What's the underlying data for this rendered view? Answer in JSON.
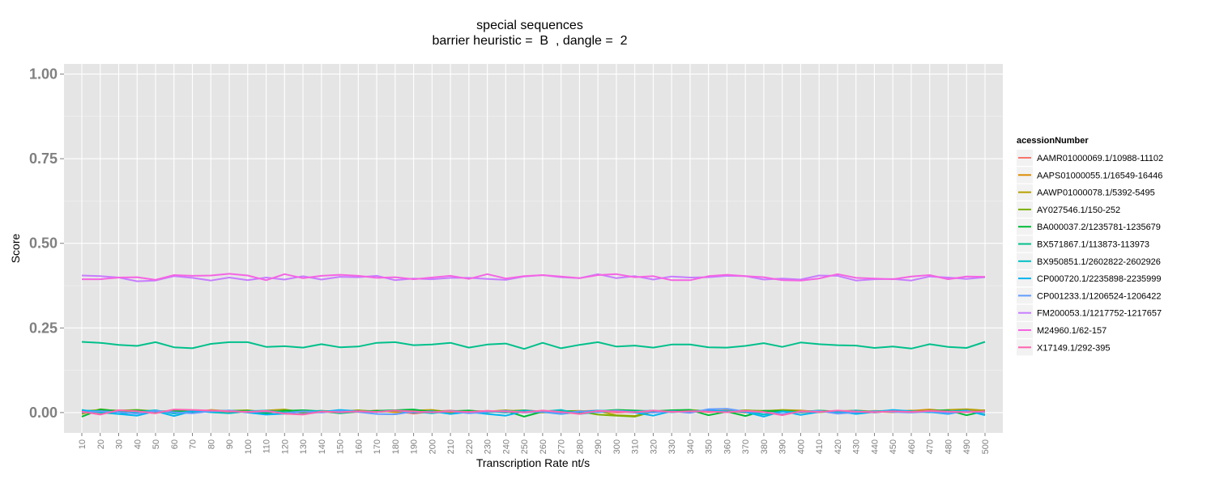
{
  "chart_data": {
    "type": "line",
    "title": "special sequences",
    "subtitle": "barrier heuristic =  B  , dangle =  2",
    "xlabel": "Transcription Rate nt/s",
    "ylabel": "Score",
    "x": [
      10,
      20,
      30,
      40,
      50,
      60,
      70,
      80,
      90,
      100,
      110,
      120,
      130,
      140,
      150,
      160,
      170,
      180,
      190,
      200,
      210,
      220,
      230,
      240,
      250,
      260,
      270,
      280,
      290,
      300,
      310,
      320,
      330,
      340,
      350,
      360,
      370,
      380,
      390,
      400,
      410,
      420,
      430,
      440,
      450,
      460,
      470,
      480,
      490,
      500
    ],
    "ylim": [
      -0.06,
      1.03
    ],
    "yticks": [
      0.0,
      0.25,
      0.5,
      0.75,
      1.0
    ],
    "ytick_labels": [
      "0.00",
      "0.25",
      "0.50",
      "0.75",
      "1.00"
    ],
    "grid": true,
    "legend_title": "acessionNumber",
    "legend_position": "right",
    "series": [
      {
        "name": "AAMR01000069.1/10988-11102",
        "color": "#F8766D",
        "values": [
          0.005,
          -0.005,
          0.007,
          0.003,
          -0.002,
          0.008,
          0.004,
          0.006,
          0.002,
          0.005,
          -0.001,
          0.006,
          0.003,
          0.004,
          0.0,
          0.002,
          0.006,
          0.004,
          -0.003,
          0.003,
          0.006,
          0.002,
          0.005,
          0.001,
          0.007,
          0.003,
          -0.002,
          0.004,
          0.006,
          0.0,
          0.003,
          0.005,
          0.002,
          0.006,
          0.001,
          0.004,
          0.0,
          0.005,
          0.003,
          0.006,
          0.002,
          0.004,
          0.0,
          0.003,
          0.005,
          0.001,
          0.006,
          0.003,
          0.004,
          0.002
        ]
      },
      {
        "name": "AAPS01000055.1/16549-16446",
        "color": "#DE8C00",
        "values": [
          0.002,
          0.006,
          0.003,
          0.005,
          0.0,
          0.004,
          0.007,
          0.002,
          0.005,
          0.001,
          0.004,
          0.006,
          0.0,
          0.003,
          0.005,
          0.002,
          0.006,
          0.001,
          0.004,
          0.003,
          0.0,
          0.005,
          0.002,
          0.006,
          0.003,
          0.0,
          0.004,
          0.005,
          0.002,
          0.006,
          0.003,
          0.001,
          0.005,
          0.002,
          0.004,
          0.006,
          0.001,
          0.003,
          0.005,
          0.0,
          0.004,
          0.002,
          0.006,
          0.003,
          0.001,
          0.005,
          0.009,
          0.004,
          0.006,
          0.007
        ]
      },
      {
        "name": "AAWP01000078.1/5392-5495",
        "color": "#B79F00",
        "values": [
          -0.004,
          0.01,
          0.004,
          0.006,
          0.002,
          0.005,
          0.0,
          0.008,
          0.004,
          0.002,
          0.006,
          0.009,
          0.001,
          0.005,
          0.003,
          0.007,
          0.002,
          0.004,
          0.006,
          0.008,
          0.001,
          0.005,
          0.003,
          0.007,
          0.002,
          0.004,
          0.006,
          0.0,
          0.005,
          -0.008,
          -0.01,
          0.004,
          0.006,
          0.002,
          0.005,
          0.003,
          0.007,
          0.004,
          0.008,
          0.006,
          0.002,
          0.004,
          0.001,
          0.005,
          0.003,
          0.006,
          0.004,
          0.008,
          0.01,
          0.006
        ]
      },
      {
        "name": "AY027546.1/150-252",
        "color": "#7CAE00",
        "values": [
          0.004,
          0.008,
          0.006,
          0.008,
          0.004,
          0.003,
          0.006,
          0.002,
          0.005,
          0.007,
          0.001,
          0.008,
          0.003,
          0.005,
          0.002,
          0.006,
          0.004,
          0.007,
          0.002,
          0.005,
          0.003,
          0.006,
          0.001,
          0.004,
          0.007,
          0.002,
          0.005,
          0.003,
          -0.006,
          -0.009,
          -0.012,
          0.003,
          0.006,
          0.008,
          0.004,
          0.002,
          0.006,
          0.005,
          0.007,
          0.003,
          0.001,
          0.004,
          0.006,
          0.002,
          0.005,
          0.003,
          0.006,
          0.004,
          0.002,
          0.005
        ]
      },
      {
        "name": "BA000037.2/1235781-1235679",
        "color": "#00BA38",
        "values": [
          -0.012,
          0.009,
          0.004,
          0.006,
          0.003,
          0.005,
          0.002,
          0.004,
          0.006,
          0.003,
          -0.002,
          0.005,
          0.007,
          0.004,
          -0.002,
          0.003,
          0.005,
          0.007,
          0.009,
          0.002,
          0.004,
          0.006,
          0.002,
          0.005,
          -0.012,
          0.003,
          0.005,
          0.002,
          0.004,
          0.008,
          0.006,
          0.004,
          0.007,
          0.008,
          -0.008,
          0.003,
          -0.01,
          0.005,
          0.004,
          0.002,
          0.006,
          0.003,
          0.001,
          0.004,
          0.006,
          0.002,
          0.005,
          0.007,
          -0.008,
          0.004
        ]
      },
      {
        "name": "BX571867.1/113873-113973",
        "color": "#00C08B",
        "values": [
          0.209,
          0.206,
          0.2,
          0.197,
          0.208,
          0.193,
          0.19,
          0.203,
          0.208,
          0.208,
          0.194,
          0.196,
          0.192,
          0.202,
          0.193,
          0.195,
          0.206,
          0.208,
          0.199,
          0.201,
          0.206,
          0.192,
          0.201,
          0.204,
          0.188,
          0.206,
          0.19,
          0.2,
          0.208,
          0.195,
          0.198,
          0.192,
          0.201,
          0.201,
          0.193,
          0.192,
          0.197,
          0.205,
          0.194,
          0.207,
          0.202,
          0.199,
          0.198,
          0.191,
          0.195,
          0.189,
          0.202,
          0.194,
          0.191,
          0.209
        ]
      },
      {
        "name": "BX950851.1/2602822-2602926",
        "color": "#00BFC4",
        "values": [
          0.008,
          0.0,
          -0.004,
          0.002,
          0.007,
          -0.003,
          0.005,
          0.001,
          -0.002,
          0.004,
          0.006,
          0.0,
          0.003,
          0.005,
          -0.001,
          0.004,
          0.002,
          0.006,
          0.003,
          -0.002,
          0.005,
          0.001,
          0.004,
          0.0,
          0.006,
          0.003,
          0.008,
          -0.004,
          0.002,
          0.005,
          0.003,
          0.006,
          0.001,
          0.004,
          0.007,
          0.002,
          0.005,
          -0.006,
          0.003,
          0.001,
          0.004,
          0.002,
          0.006,
          0.0,
          0.005,
          0.003,
          0.001,
          0.004,
          0.006,
          -0.006
        ]
      },
      {
        "name": "CP000720.1/2235898-2235999",
        "color": "#00B4F0",
        "values": [
          0.006,
          0.004,
          -0.004,
          -0.009,
          0.004,
          -0.01,
          0.004,
          0.002,
          0.006,
          0.0,
          -0.006,
          -0.003,
          -0.004,
          0.002,
          0.008,
          0.004,
          0.002,
          0.006,
          0.0,
          0.004,
          -0.004,
          0.002,
          -0.004,
          -0.009,
          0.004,
          0.002,
          -0.004,
          0.002,
          0.006,
          0.004,
          0.0,
          -0.009,
          0.004,
          0.002,
          0.006,
          0.004,
          0.002,
          -0.012,
          0.004,
          -0.007,
          0.002,
          0.004,
          -0.004,
          0.002,
          0.008,
          0.004,
          0.002,
          -0.004,
          0.006,
          -0.008
        ]
      },
      {
        "name": "CP001233.1/1206524-1206422",
        "color": "#619CFF",
        "values": [
          0.0,
          0.004,
          0.002,
          -0.003,
          0.005,
          0.001,
          -0.002,
          0.004,
          0.006,
          0.001,
          0.003,
          -0.002,
          0.004,
          0.0,
          0.005,
          0.002,
          -0.004,
          -0.005,
          0.003,
          0.001,
          0.004,
          -0.002,
          0.002,
          0.005,
          0.0,
          0.003,
          -0.003,
          0.004,
          0.001,
          0.006,
          0.002,
          0.0,
          0.004,
          -0.001,
          0.01,
          0.011,
          0.003,
          0.001,
          -0.004,
          0.002,
          0.005,
          -0.003,
          0.001,
          0.004,
          0.002,
          0.0,
          0.003,
          -0.002,
          0.004,
          0.001
        ]
      },
      {
        "name": "FM200053.1/1217752-1217657",
        "color": "#C77CFF",
        "values": [
          0.405,
          0.403,
          0.399,
          0.388,
          0.39,
          0.403,
          0.398,
          0.39,
          0.399,
          0.391,
          0.399,
          0.393,
          0.403,
          0.393,
          0.401,
          0.4,
          0.404,
          0.391,
          0.396,
          0.394,
          0.398,
          0.398,
          0.395,
          0.392,
          0.402,
          0.406,
          0.4,
          0.397,
          0.409,
          0.397,
          0.403,
          0.393,
          0.402,
          0.399,
          0.4,
          0.404,
          0.403,
          0.393,
          0.396,
          0.393,
          0.405,
          0.404,
          0.39,
          0.394,
          0.395,
          0.39,
          0.402,
          0.399,
          0.395,
          0.4
        ]
      },
      {
        "name": "M24960.1/62-157",
        "color": "#F564E3",
        "values": [
          0.394,
          0.394,
          0.399,
          0.4,
          0.392,
          0.406,
          0.404,
          0.405,
          0.41,
          0.405,
          0.391,
          0.409,
          0.397,
          0.404,
          0.407,
          0.404,
          0.398,
          0.4,
          0.394,
          0.399,
          0.404,
          0.395,
          0.409,
          0.396,
          0.403,
          0.406,
          0.402,
          0.397,
          0.406,
          0.409,
          0.4,
          0.403,
          0.391,
          0.391,
          0.403,
          0.407,
          0.403,
          0.4,
          0.391,
          0.39,
          0.396,
          0.409,
          0.398,
          0.396,
          0.394,
          0.402,
          0.406,
          0.394,
          0.402,
          0.401
        ]
      },
      {
        "name": "X17149.1/292-395",
        "color": "#FF64B0",
        "values": [
          0.003,
          -0.006,
          0.007,
          0.004,
          -0.002,
          0.009,
          0.008,
          0.006,
          0.004,
          0.002,
          0.005,
          -0.003,
          -0.006,
          0.003,
          0.001,
          0.004,
          0.002,
          0.006,
          0.003,
          0.001,
          0.004,
          0.002,
          0.005,
          0.003,
          0.001,
          0.006,
          0.002,
          -0.004,
          0.005,
          0.003,
          0.001,
          0.006,
          0.002,
          0.004,
          0.003,
          0.001,
          0.005,
          0.002,
          -0.008,
          0.004,
          0.002,
          0.006,
          0.003,
          0.001,
          0.004,
          0.002,
          0.005,
          0.003,
          0.001,
          0.004
        ]
      }
    ]
  }
}
